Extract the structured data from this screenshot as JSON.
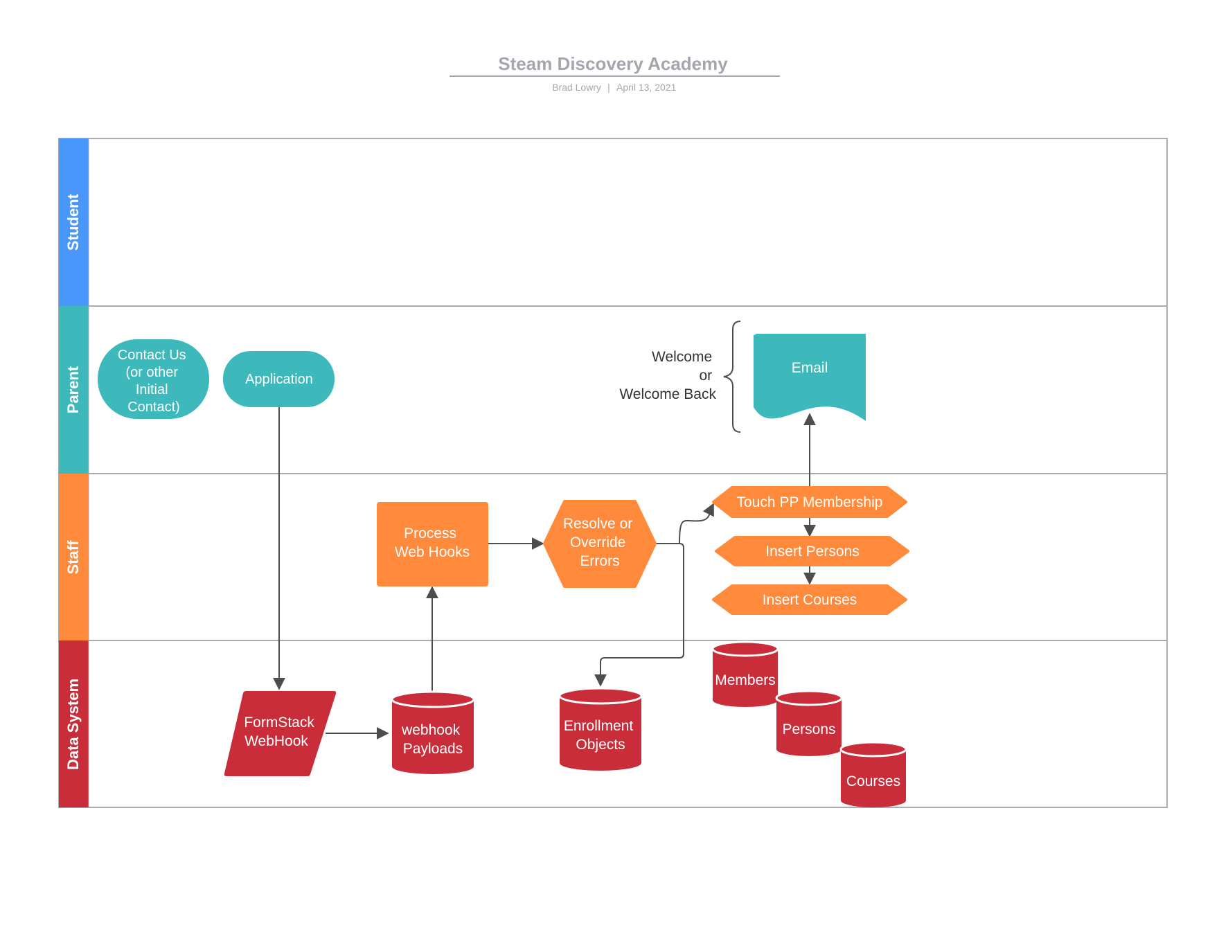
{
  "header": {
    "title": "Steam Discovery Academy",
    "author": "Brad Lowry",
    "separator": "|",
    "date": "April 13, 2021"
  },
  "lanes": [
    {
      "label": "Student",
      "color": "#4a97fc"
    },
    {
      "label": "Parent",
      "color": "#3db8bb"
    },
    {
      "label": "Staff",
      "color": "#ff8a3c"
    },
    {
      "label": "Data System",
      "color": "#c92d39"
    }
  ],
  "colors": {
    "teal": "#3db8bb",
    "orange": "#ff8a3c",
    "red": "#c92d39",
    "line": "#a9abaf",
    "arrow": "#4d4d4d",
    "title": "#a3a6ad"
  },
  "nodes": {
    "contact_us": {
      "lines": [
        "Contact Us",
        "(or other",
        "Initial",
        "Contact)"
      ]
    },
    "application": {
      "lines": [
        "Application"
      ]
    },
    "email": {
      "lines": [
        "Email"
      ]
    },
    "welcome_note": {
      "lines": [
        "Welcome",
        "or",
        "Welcome Back"
      ]
    },
    "process_web_hooks": {
      "lines": [
        "Process",
        "Web Hooks"
      ]
    },
    "resolve_errors": {
      "lines": [
        "Resolve or",
        "Override",
        "Errors"
      ]
    },
    "touch_pp": {
      "lines": [
        "Touch PP Membership"
      ]
    },
    "insert_persons": {
      "lines": [
        "Insert Persons"
      ]
    },
    "insert_courses": {
      "lines": [
        "Insert Courses"
      ]
    },
    "formstack": {
      "lines": [
        "FormStack",
        "WebHook"
      ]
    },
    "webhook_payloads": {
      "lines": [
        "webhook",
        "Payloads"
      ]
    },
    "enrollment_objects": {
      "lines": [
        "Enrollment",
        "Objects"
      ]
    },
    "members": {
      "lines": [
        "Members"
      ]
    },
    "persons": {
      "lines": [
        "Persons"
      ]
    },
    "courses": {
      "lines": [
        "Courses"
      ]
    }
  }
}
